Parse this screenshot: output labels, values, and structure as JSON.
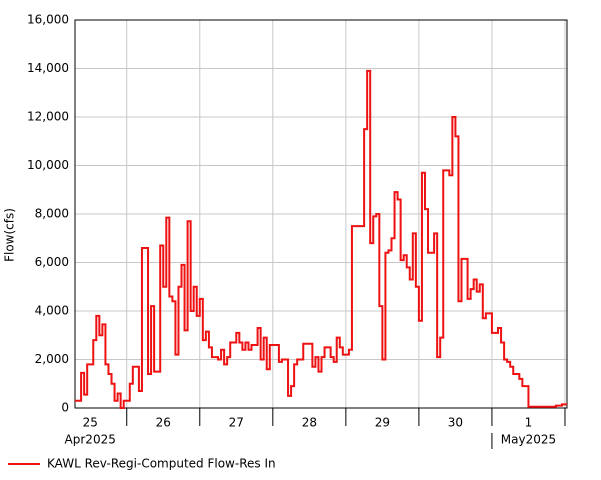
{
  "chart_data": {
    "type": "step-line",
    "y_label": "Flow(cfs)",
    "series": [
      {
        "name": "KAWL Rev-Regi-Computed Flow-Res In",
        "color": "#ee1111",
        "x": [
          "2025-04-25T07:00",
          "2025-04-25T09:00",
          "2025-04-25T10:00",
          "2025-04-25T11:00",
          "2025-04-25T13:00",
          "2025-04-25T14:00",
          "2025-04-25T15:00",
          "2025-04-25T16:00",
          "2025-04-25T17:00",
          "2025-04-25T18:00",
          "2025-04-25T19:00",
          "2025-04-25T20:00",
          "2025-04-25T21:00",
          "2025-04-25T22:00",
          "2025-04-25T23:00",
          "2025-04-26T01:00",
          "2025-04-26T02:00",
          "2025-04-26T04:00",
          "2025-04-26T05:00",
          "2025-04-26T07:00",
          "2025-04-26T08:00",
          "2025-04-26T09:00",
          "2025-04-26T11:00",
          "2025-04-26T12:00",
          "2025-04-26T13:00",
          "2025-04-26T14:00",
          "2025-04-26T15:00",
          "2025-04-26T16:00",
          "2025-04-26T17:00",
          "2025-04-26T18:00",
          "2025-04-26T19:00",
          "2025-04-26T20:00",
          "2025-04-26T21:00",
          "2025-04-26T22:00",
          "2025-04-26T23:00",
          "2025-04-27T00:00",
          "2025-04-27T01:00",
          "2025-04-27T02:00",
          "2025-04-27T03:00",
          "2025-04-27T04:00",
          "2025-04-27T06:00",
          "2025-04-27T07:00",
          "2025-04-27T08:00",
          "2025-04-27T09:00",
          "2025-04-27T10:00",
          "2025-04-27T12:00",
          "2025-04-27T13:00",
          "2025-04-27T14:00",
          "2025-04-27T15:00",
          "2025-04-27T16:00",
          "2025-04-27T17:00",
          "2025-04-27T19:00",
          "2025-04-27T20:00",
          "2025-04-27T21:00",
          "2025-04-27T22:00",
          "2025-04-27T23:00",
          "2025-04-28T02:00",
          "2025-04-28T03:00",
          "2025-04-28T05:00",
          "2025-04-28T06:00",
          "2025-04-28T07:00",
          "2025-04-28T08:00",
          "2025-04-28T10:00",
          "2025-04-28T13:00",
          "2025-04-28T14:00",
          "2025-04-28T15:00",
          "2025-04-28T16:00",
          "2025-04-28T17:00",
          "2025-04-28T19:00",
          "2025-04-28T20:00",
          "2025-04-28T21:00",
          "2025-04-28T22:00",
          "2025-04-28T23:00",
          "2025-04-29T01:00",
          "2025-04-29T02:00",
          "2025-04-29T06:00",
          "2025-04-29T07:00",
          "2025-04-29T08:00",
          "2025-04-29T09:00",
          "2025-04-29T10:00",
          "2025-04-29T11:00",
          "2025-04-29T12:00",
          "2025-04-29T13:00",
          "2025-04-29T14:00",
          "2025-04-29T15:00",
          "2025-04-29T16:00",
          "2025-04-29T17:00",
          "2025-04-29T18:00",
          "2025-04-29T19:00",
          "2025-04-29T20:00",
          "2025-04-29T21:00",
          "2025-04-29T22:00",
          "2025-04-29T23:00",
          "2025-04-30T00:00",
          "2025-04-30T01:00",
          "2025-04-30T02:00",
          "2025-04-30T03:00",
          "2025-04-30T05:00",
          "2025-04-30T06:00",
          "2025-04-30T07:00",
          "2025-04-30T08:00",
          "2025-04-30T10:00",
          "2025-04-30T11:00",
          "2025-04-30T12:00",
          "2025-04-30T13:00",
          "2025-04-30T14:00",
          "2025-04-30T16:00",
          "2025-04-30T17:00",
          "2025-04-30T18:00",
          "2025-04-30T19:00",
          "2025-04-30T20:00",
          "2025-04-30T21:00",
          "2025-04-30T22:00",
          "2025-05-01T00:00",
          "2025-05-01T02:00",
          "2025-05-01T03:00",
          "2025-05-01T04:00",
          "2025-05-01T05:00",
          "2025-05-01T06:00",
          "2025-05-01T07:00",
          "2025-05-01T09:00",
          "2025-05-01T10:00",
          "2025-05-01T12:00",
          "2025-05-01T21:00",
          "2025-05-01T23:00"
        ],
        "values": [
          300,
          1450,
          550,
          1800,
          2800,
          3800,
          3000,
          3450,
          1800,
          1400,
          1000,
          300,
          600,
          0,
          300,
          1000,
          1700,
          700,
          6600,
          1400,
          4200,
          1500,
          6700,
          5000,
          7850,
          4600,
          4400,
          2200,
          5000,
          5900,
          3200,
          7700,
          4000,
          5000,
          3800,
          4500,
          2800,
          3150,
          2500,
          2100,
          2000,
          2400,
          1800,
          2100,
          2700,
          3100,
          2700,
          2400,
          2700,
          2400,
          2600,
          3300,
          2000,
          2900,
          1600,
          2600,
          1900,
          2000,
          500,
          900,
          1800,
          2000,
          2650,
          1700,
          2100,
          1500,
          2100,
          2500,
          2100,
          1900,
          2900,
          2500,
          2200,
          2400,
          7500,
          11500,
          13900,
          6800,
          7900,
          8000,
          4200,
          2000,
          6400,
          6500,
          7000,
          8900,
          8600,
          6100,
          6300,
          5800,
          5300,
          7200,
          5000,
          3600,
          9700,
          8200,
          6400,
          7200,
          2100,
          2900,
          9800,
          9600,
          12000,
          11200,
          4400,
          6150,
          4500,
          4900,
          5300,
          4800,
          5100,
          3700,
          3900,
          3100,
          3300,
          2700,
          2000,
          1900,
          1700,
          1400,
          1200,
          900,
          50,
          100,
          150
        ]
      }
    ],
    "xlim": [
      "2025-04-25T07:00",
      "2025-05-02T00:40"
    ],
    "xticks": [
      "2025-04-26T00:00",
      "2025-04-27T00:00",
      "2025-04-28T00:00",
      "2025-04-29T00:00",
      "2025-04-30T00:00",
      "2025-05-01T00:00",
      "2025-05-02T00:00"
    ],
    "xtick_labels": [
      {
        "value": "2025-04-25T12:00",
        "label": "25"
      },
      {
        "value": "2025-04-26T12:00",
        "label": "26"
      },
      {
        "value": "2025-04-27T12:00",
        "label": "27"
      },
      {
        "value": "2025-04-28T12:00",
        "label": "28"
      },
      {
        "value": "2025-04-29T12:00",
        "label": "29"
      },
      {
        "value": "2025-04-30T12:00",
        "label": "30"
      },
      {
        "value": "2025-05-01T12:00",
        "label": "1"
      }
    ],
    "month_labels": [
      {
        "value": "2025-04-25T12:00",
        "label": "Apr2025"
      },
      {
        "value": "2025-05-01T12:00",
        "label": "May2025"
      }
    ],
    "ylim": [
      0,
      16000
    ],
    "yticks": [
      0,
      {
        "value": 2000,
        "label": "2,000"
      },
      {
        "value": 4000,
        "label": "4,000"
      },
      {
        "value": 6000,
        "label": "6,000"
      },
      {
        "value": 8000,
        "label": "8,000"
      },
      {
        "value": 10000,
        "label": "10,000"
      },
      {
        "value": 12000,
        "label": "12,000"
      },
      {
        "value": 14000,
        "label": "14,000"
      },
      {
        "value": 16000,
        "label": "16,000"
      }
    ],
    "grid": true,
    "legend": "bottom-left"
  }
}
